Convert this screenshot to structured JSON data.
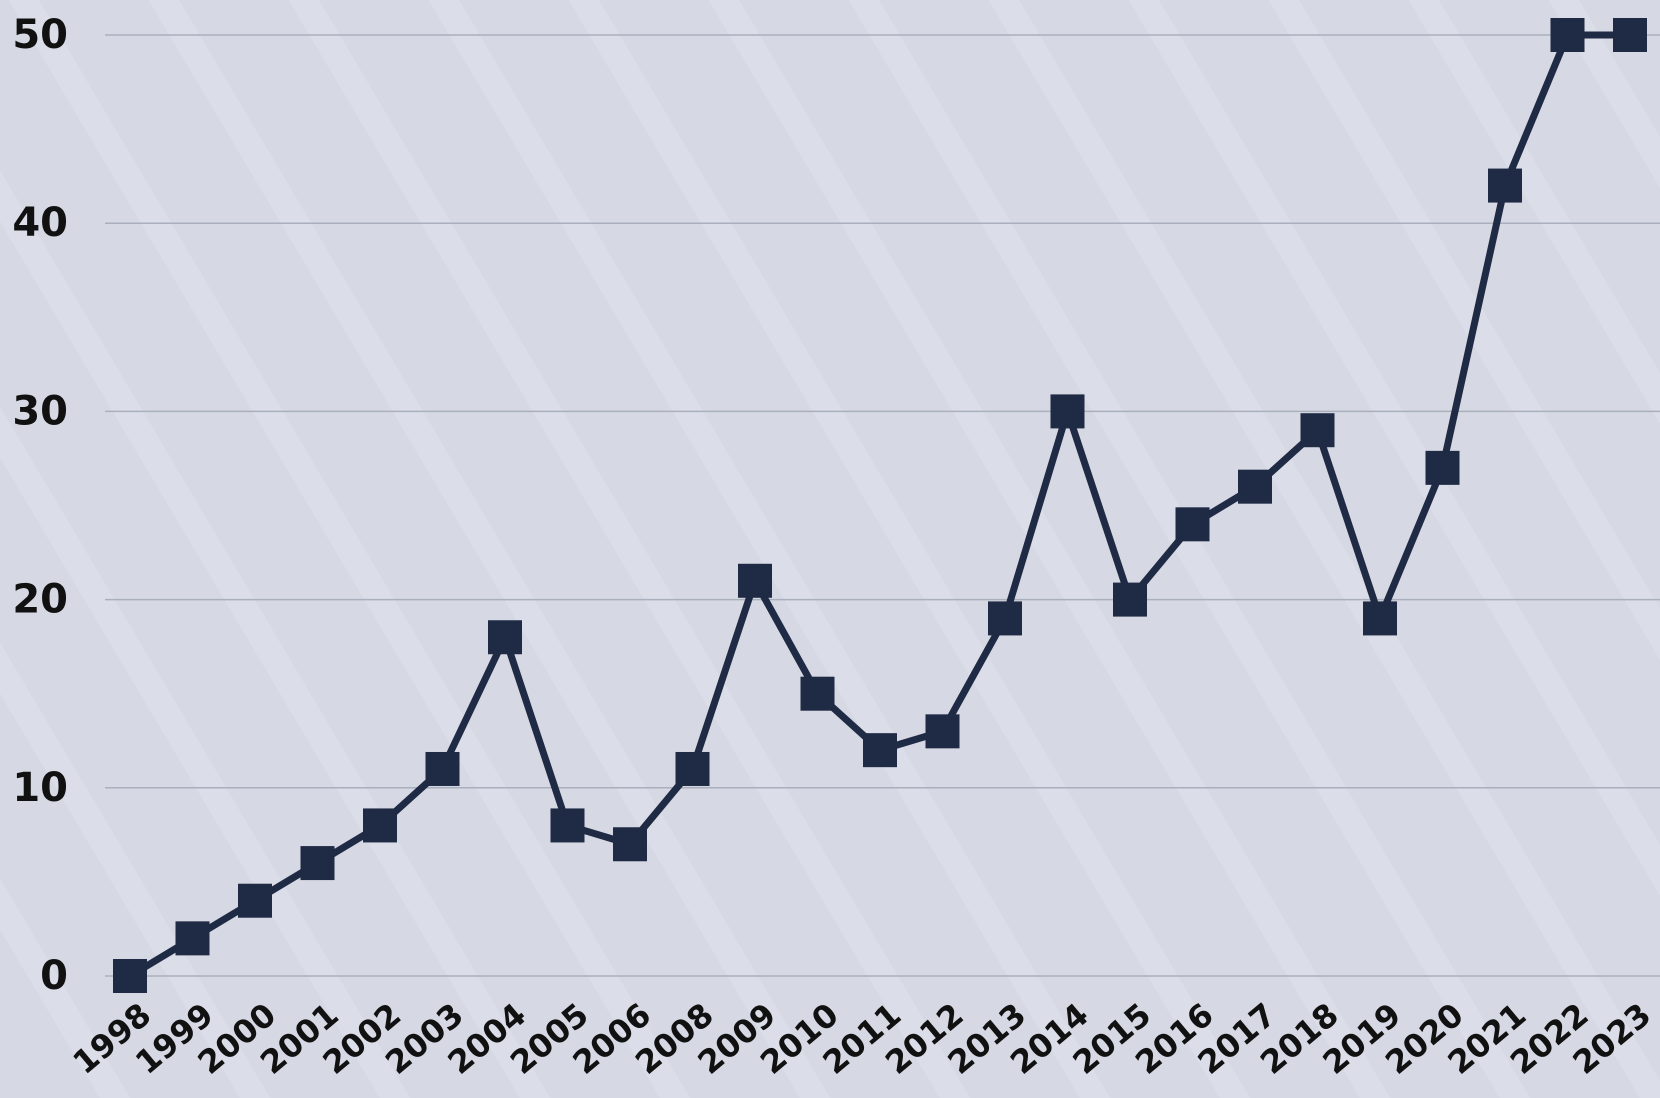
{
  "colors": {
    "background": "#d6d9e4",
    "series": "#1f2a44",
    "grid": "#a9afbd",
    "text": "#111111"
  },
  "chart_data": {
    "type": "line",
    "marker": "square",
    "grid": "horizontal",
    "legend": "none",
    "title": "",
    "xlabel": "",
    "ylabel": "",
    "ylim": [
      0,
      50
    ],
    "yticks": [
      0,
      10,
      20,
      30,
      40,
      50
    ],
    "categories": [
      "1998",
      "1999",
      "2000",
      "2001",
      "2002",
      "2003",
      "2004",
      "2005",
      "2006",
      "2008",
      "2009",
      "2010",
      "2011",
      "2012",
      "2013",
      "2014",
      "2015",
      "2016",
      "2017",
      "2018",
      "2019",
      "2020",
      "2021",
      "2022",
      "2023"
    ],
    "series": [
      {
        "values": [
          0,
          2,
          4,
          6,
          8,
          11,
          18,
          8,
          7,
          11,
          21,
          15,
          12,
          13,
          19,
          30,
          20,
          24,
          26,
          29,
          19,
          27,
          42,
          50,
          50
        ]
      }
    ]
  }
}
